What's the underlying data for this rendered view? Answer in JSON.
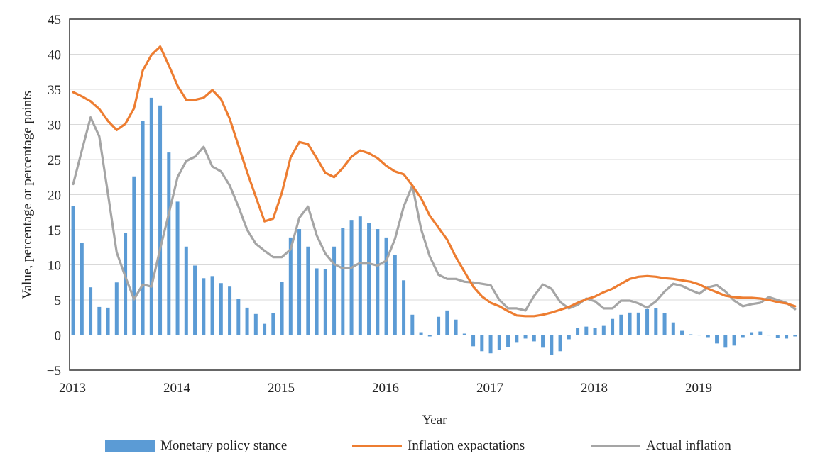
{
  "chart_data": {
    "type": "bar+line",
    "title": "",
    "xlabel": "Year",
    "ylabel": "Value, percentage or percentage points",
    "ylim": [
      -5,
      45
    ],
    "yticks": [
      -5,
      0,
      5,
      10,
      15,
      20,
      25,
      30,
      35,
      40,
      45
    ],
    "ytick_labels": [
      "−5",
      "0",
      "5",
      "10",
      "15",
      "20",
      "25",
      "30",
      "35",
      "40",
      "45"
    ],
    "xticks": [
      "2013",
      "2014",
      "2015",
      "2016",
      "2017",
      "2018",
      "2019"
    ],
    "x_frequency": "monthly",
    "x_start": "2013-01",
    "n_periods": 84,
    "grid": "horizontal",
    "legend_position": "bottom",
    "series": [
      {
        "name": "Monetary policy stance",
        "type": "bar",
        "color": "#5b9bd5",
        "values": [
          18.4,
          13.1,
          6.8,
          4.0,
          3.9,
          7.5,
          14.5,
          22.6,
          30.5,
          33.8,
          32.7,
          26.0,
          19.0,
          12.6,
          9.9,
          8.1,
          8.4,
          7.4,
          6.9,
          5.2,
          3.9,
          3.0,
          1.6,
          3.1,
          7.6,
          13.9,
          15.1,
          12.6,
          9.5,
          9.4,
          12.6,
          15.3,
          16.4,
          16.9,
          16.0,
          15.1,
          13.9,
          11.4,
          7.8,
          2.9,
          0.4,
          -0.2,
          2.6,
          3.5,
          2.2,
          0.2,
          -1.6,
          -2.3,
          -2.6,
          -2.1,
          -1.7,
          -1.1,
          -0.5,
          -0.9,
          -1.8,
          -2.8,
          -2.3,
          -0.6,
          1.0,
          1.2,
          1.0,
          1.3,
          2.3,
          2.9,
          3.2,
          3.2,
          3.7,
          3.8,
          3.1,
          1.8,
          0.6,
          0.1,
          0.0,
          -0.3,
          -1.2,
          -1.8,
          -1.5,
          -0.3,
          0.4,
          0.5,
          0.0,
          -0.4,
          -0.5,
          -0.2
        ]
      },
      {
        "name": "Inflation expactations",
        "type": "line",
        "color": "#ed7d31",
        "values": [
          34.6,
          34.0,
          33.3,
          32.2,
          30.5,
          29.2,
          30.1,
          32.3,
          37.7,
          39.9,
          41.1,
          38.4,
          35.5,
          33.5,
          33.5,
          33.8,
          34.9,
          33.6,
          30.8,
          27.0,
          23.2,
          19.7,
          16.2,
          16.6,
          20.3,
          25.3,
          27.5,
          27.2,
          25.2,
          23.1,
          22.5,
          23.8,
          25.4,
          26.3,
          25.9,
          25.2,
          24.1,
          23.3,
          22.9,
          21.3,
          19.5,
          17.0,
          15.3,
          13.6,
          11.1,
          9.0,
          6.9,
          5.5,
          4.6,
          4.1,
          3.4,
          2.8,
          2.7,
          2.7,
          2.9,
          3.2,
          3.6,
          4.0,
          4.6,
          5.1,
          5.5,
          6.1,
          6.6,
          7.3,
          8.0,
          8.3,
          8.4,
          8.3,
          8.1,
          8.0,
          7.8,
          7.6,
          7.2,
          6.6,
          6.1,
          5.6,
          5.4,
          5.3,
          5.3,
          5.2,
          5.0,
          4.7,
          4.5,
          4.1
        ]
      },
      {
        "name": "Actual inflation",
        "type": "line",
        "color": "#a5a5a5",
        "values": [
          21.5,
          26.3,
          31.0,
          28.3,
          20.1,
          11.8,
          8.3,
          5.1,
          7.2,
          6.9,
          12.3,
          17.3,
          22.5,
          24.8,
          25.4,
          26.8,
          24.0,
          23.3,
          21.3,
          18.3,
          15.0,
          13.0,
          12.0,
          11.1,
          11.1,
          12.2,
          16.7,
          18.3,
          14.2,
          11.6,
          10.1,
          9.5,
          9.6,
          10.3,
          10.2,
          9.9,
          10.6,
          13.7,
          18.3,
          21.3,
          15.1,
          11.2,
          8.6,
          8.0,
          8.0,
          7.6,
          7.5,
          7.3,
          7.1,
          5.0,
          3.8,
          3.8,
          3.5,
          5.6,
          7.2,
          6.6,
          4.7,
          3.8,
          4.3,
          5.2,
          4.8,
          3.8,
          3.8,
          4.9,
          4.9,
          4.5,
          3.9,
          4.8,
          6.2,
          7.3,
          7.0,
          6.4,
          5.9,
          6.8,
          7.1,
          6.2,
          4.9,
          4.1,
          4.4,
          4.6,
          5.4,
          5.0,
          4.6,
          3.7
        ]
      }
    ]
  },
  "legend": {
    "items": [
      {
        "label": "Monetary policy stance",
        "kind": "bar",
        "color": "#5b9bd5"
      },
      {
        "label": "Inflation expactations",
        "kind": "line",
        "color": "#ed7d31"
      },
      {
        "label": "Actual inflation",
        "kind": "line",
        "color": "#a5a5a5"
      }
    ]
  }
}
